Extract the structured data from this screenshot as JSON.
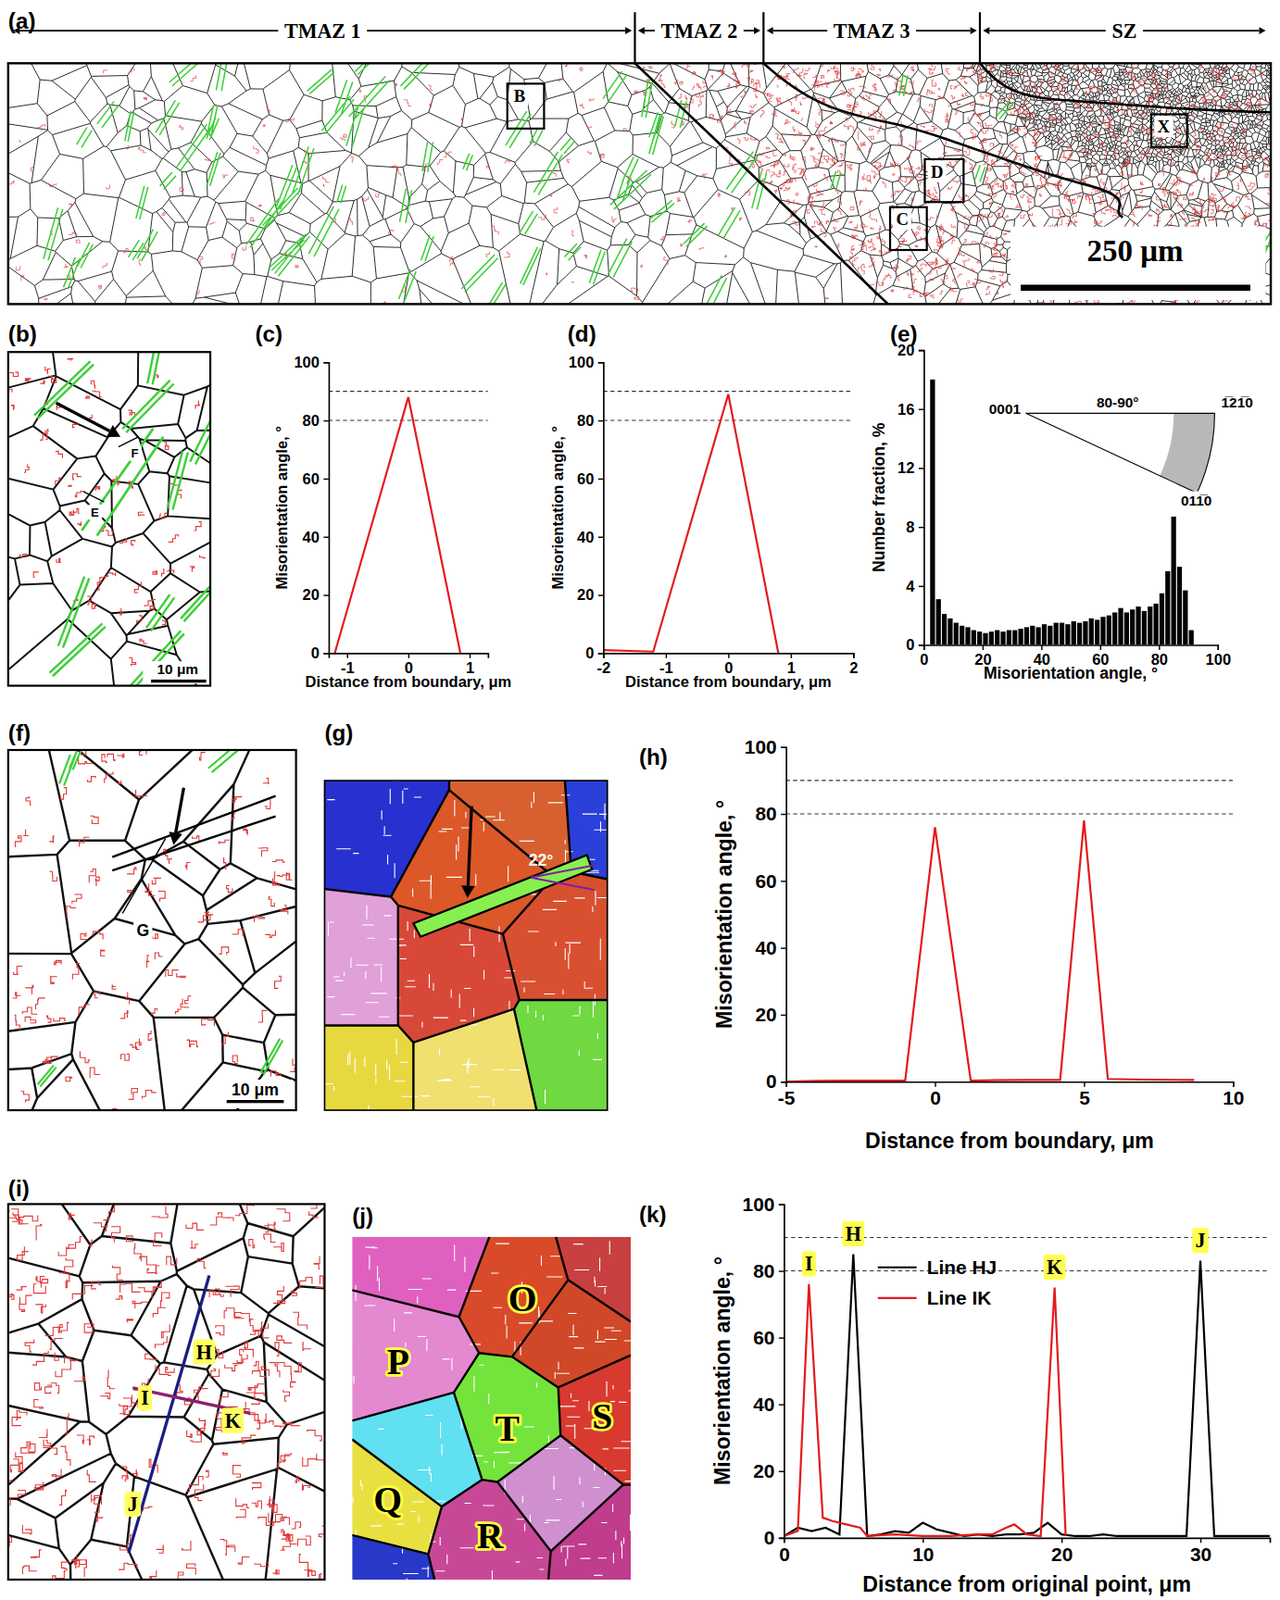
{
  "micrographs": {
    "a": {
      "letter": "(a)",
      "zones": [
        "TMAZ 1",
        "TMAZ 2",
        "TMAZ 3",
        "SZ"
      ],
      "boxes": [
        "B",
        "C",
        "D",
        "X"
      ],
      "scale_bar": "250 μm"
    },
    "b": {
      "letter": "(b)",
      "labels": [
        "E",
        "F"
      ],
      "scale_bar": "10 μm"
    },
    "f": {
      "letter": "(f)",
      "labels": [
        "G"
      ],
      "scale_bar": "10 μm"
    },
    "g": {
      "letter": "(g)",
      "angle_label": "22°"
    },
    "i": {
      "letter": "(i)",
      "labels": [
        "H",
        "I",
        "J",
        "K"
      ]
    },
    "j": {
      "letter": "(j)",
      "labels": [
        "O",
        "P",
        "Q",
        "R",
        "S",
        "T"
      ]
    }
  },
  "chart_data": [
    {
      "panel": "(c)",
      "type": "line",
      "xlim": [
        -1.3,
        1.3
      ],
      "xticks": [
        -1,
        0,
        1
      ],
      "ylim": [
        0,
        100
      ],
      "yticks": [
        0,
        20,
        40,
        60,
        80,
        100
      ],
      "xlabel": "Distance from boundary, μm",
      "ylabel": "Misorientation angle, °",
      "reference_lines": [
        80,
        90
      ],
      "series": [
        {
          "color": "#e41a1c",
          "x": [
            -1.2,
            0,
            0.85
          ],
          "values": [
            0,
            88,
            0
          ]
        }
      ]
    },
    {
      "panel": "(d)",
      "type": "line",
      "xlim": [
        -2,
        2
      ],
      "xticks": [
        -2,
        -1,
        0,
        1,
        2
      ],
      "ylim": [
        0,
        100
      ],
      "yticks": [
        0,
        20,
        40,
        60,
        80,
        100
      ],
      "xlabel": "Distance from boundary, μm",
      "ylabel": "Misorientation angle, °",
      "reference_lines": [
        80,
        90
      ],
      "series": [
        {
          "color": "#e41a1c",
          "x": [
            -2,
            -1.2,
            0,
            0.8
          ],
          "values": [
            1,
            0.5,
            89,
            0
          ]
        }
      ]
    },
    {
      "panel": "(e)",
      "type": "histogram",
      "xlim": [
        0,
        100
      ],
      "xticks": [
        0,
        20,
        40,
        60,
        80,
        100
      ],
      "ylim": [
        0,
        20
      ],
      "yticks": [
        0,
        4,
        8,
        12,
        16,
        20
      ],
      "xlabel": "Misorientation angle, °",
      "ylabel": "Number fraction, %",
      "color": "#000000",
      "bins": [
        2,
        4,
        6,
        8,
        10,
        12,
        14,
        16,
        18,
        20,
        22,
        24,
        26,
        28,
        30,
        32,
        34,
        36,
        38,
        40,
        42,
        44,
        46,
        48,
        50,
        52,
        54,
        56,
        58,
        60,
        62,
        64,
        66,
        68,
        70,
        72,
        74,
        76,
        78,
        80,
        82,
        84,
        86,
        88,
        90,
        92
      ],
      "values": [
        18,
        3.1,
        2.1,
        1.8,
        1.5,
        1.3,
        1.2,
        1.0,
        0.9,
        0.8,
        0.9,
        1.0,
        0.9,
        1.0,
        1.0,
        1.1,
        1.2,
        1.3,
        1.2,
        1.4,
        1.3,
        1.5,
        1.5,
        1.4,
        1.6,
        1.5,
        1.6,
        1.8,
        1.7,
        1.9,
        2.0,
        2.2,
        2.5,
        2.2,
        2.4,
        2.6,
        2.3,
        2.6,
        2.8,
        3.5,
        5.0,
        8.7,
        5.3,
        3.7,
        1.0
      ],
      "inset_labels": [
        "0001",
        "80-90°",
        "1̅21̅0",
        "011̅0"
      ]
    },
    {
      "panel": "(h)",
      "type": "line",
      "xlim": [
        -5,
        10
      ],
      "xticks": [
        -5,
        0,
        5,
        10
      ],
      "ylim": [
        0,
        100
      ],
      "yticks": [
        0,
        20,
        40,
        60,
        80,
        100
      ],
      "xlabel": "Distance from boundary, μm",
      "ylabel": "Misorientation angle, °",
      "reference_lines": [
        80,
        90
      ],
      "series": [
        {
          "color": "#e41a1c",
          "x": [
            -5,
            -4,
            -3,
            -2,
            -1,
            0,
            1.2,
            2,
            3,
            4.2,
            5,
            5.8,
            7,
            8.7
          ],
          "values": [
            0,
            0.2,
            0.3,
            0.3,
            0.3,
            76,
            0.3,
            0.4,
            0.5,
            0.5,
            78,
            0.8,
            0.6,
            0.5
          ]
        }
      ]
    },
    {
      "panel": "(k)",
      "type": "line",
      "xlim": [
        0,
        35
      ],
      "xticks": [
        0,
        10,
        20,
        30
      ],
      "ylim": [
        0,
        100
      ],
      "yticks": [
        0,
        20,
        40,
        60,
        80,
        100
      ],
      "xlabel": "Distance from original point, μm",
      "ylabel": "Misorientation angle, °",
      "reference_lines": [
        80,
        90
      ],
      "legend": "upper-left",
      "series": [
        {
          "name": "Line HJ",
          "color": "#000000",
          "x": [
            0,
            1,
            2,
            3,
            4,
            5,
            6,
            7,
            8,
            9,
            10,
            11,
            12,
            13,
            14,
            15,
            16,
            17,
            18,
            19,
            20,
            21,
            22,
            23,
            24,
            25,
            26,
            27,
            28,
            29,
            30,
            31,
            32,
            33,
            34,
            35
          ],
          "values": [
            0.5,
            3,
            2,
            3,
            1,
            85,
            0.5,
            1,
            2,
            1.5,
            4.5,
            2.5,
            1.5,
            0.5,
            1,
            0.5,
            1,
            1,
            1.5,
            4.5,
            1,
            0.5,
            0.5,
            1,
            0.5,
            0.5,
            0.5,
            0.5,
            0.5,
            0.5,
            83,
            0.5,
            0.5,
            0.5,
            0.5,
            0.5
          ]
        },
        {
          "name": "Line IK",
          "color": "#e41a1c",
          "x": [
            0,
            1,
            1.8,
            2.8,
            3.5,
            4.5,
            5.5,
            6,
            8,
            10,
            12,
            14,
            15,
            16,
            16.6,
            17.5,
            18.5,
            19.5,
            20.3
          ],
          "values": [
            0.5,
            2,
            76,
            6,
            5,
            4,
            3,
            0.5,
            1,
            0.5,
            0.5,
            1,
            1,
            3,
            4,
            1,
            0.5,
            75,
            0.5
          ]
        }
      ],
      "annotations": [
        {
          "text": "I",
          "x": 1.8,
          "y": 76
        },
        {
          "text": "H",
          "x": 5,
          "y": 85
        },
        {
          "text": "K",
          "x": 19.5,
          "y": 75
        },
        {
          "text": "J",
          "x": 30,
          "y": 83
        }
      ]
    }
  ]
}
